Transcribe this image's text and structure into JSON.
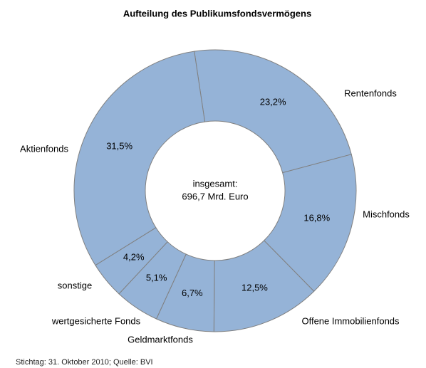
{
  "chart_data": {
    "type": "donut",
    "title": "Aufteilung des Publikumsfondsvermögens",
    "center_text": [
      "insgesamt:",
      "696,7 Mrd. Euro"
    ],
    "footnote": "Stichtag: 31. Oktober 2010; Quelle: BVI",
    "categories": [
      "Rentenfonds",
      "Mischfonds",
      "Offene Immobilienfonds",
      "Geldmarktfonds",
      "wertgesicherte Fonds",
      "sonstige",
      "Aktienfonds"
    ],
    "values": [
      23.2,
      16.8,
      12.5,
      6.7,
      5.1,
      4.2,
      31.5
    ],
    "value_labels": [
      "23,2%",
      "16,8%",
      "12,5%",
      "6,7%",
      "5,1%",
      "4,2%",
      "31,5%"
    ],
    "color": "#95b3d7"
  }
}
